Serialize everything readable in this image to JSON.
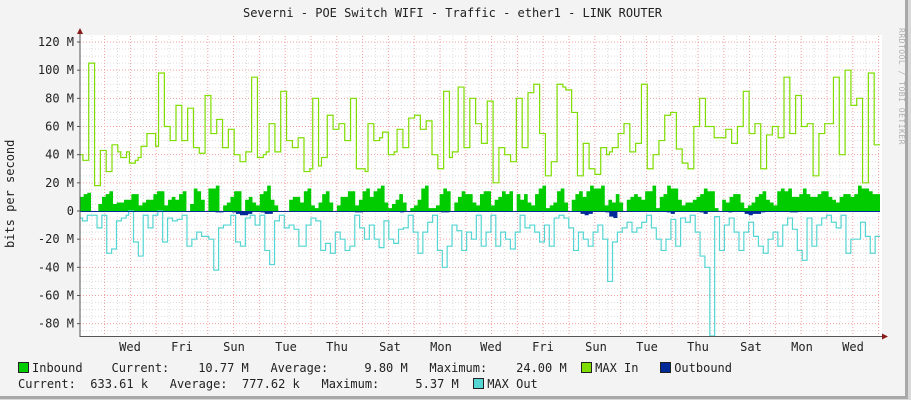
{
  "header": {
    "title": "Severni - POE Switch WIFI - Traffic - ether1 - LINK ROUTER",
    "watermark": "RRDTOOL / TOBI OETIKER"
  },
  "axes": {
    "ylabel": "bits per second",
    "yticks": [
      "120 M",
      "100 M",
      "80 M",
      "60 M",
      "40 M",
      "20 M",
      "0",
      "-20 M",
      "-40 M",
      "-60 M",
      "-80 M"
    ],
    "xticks": [
      "Wed",
      "Fri",
      "Sun",
      "Tue",
      "Thu",
      "Sat",
      "Mon",
      "Wed",
      "Fri",
      "Sun",
      "Tue",
      "Thu",
      "Sat",
      "Mon",
      "Wed"
    ]
  },
  "legend": {
    "inbound": {
      "label": "Inbound",
      "color": "#00cc00",
      "current_label": "Current:",
      "current": "10.77 M",
      "average_label": "Average:",
      "average": "9.80 M",
      "maximum_label": "Maximum:",
      "maximum": "24.00 M"
    },
    "max_in": {
      "label": "MAX In",
      "color": "#7fdd00"
    },
    "outbound": {
      "label": "Outbound",
      "color": "#002a97",
      "current_label": "Current:",
      "current": "633.61 k",
      "average_label": "Average:",
      "average": "777.62 k",
      "maximum_label": "Maximum:",
      "maximum": "5.37 M"
    },
    "max_out": {
      "label": "MAX Out",
      "color": "#55d6d3"
    }
  },
  "chart_data": {
    "type": "area",
    "title": "Severni - POE Switch WIFI - Traffic - ether1 - LINK ROUTER",
    "xlabel": "",
    "ylabel": "bits per second",
    "ylim": [
      -90,
      125
    ],
    "yunit": "M",
    "grid": true,
    "legend_position": "bottom",
    "x_tick_labels": [
      "Wed",
      "Fri",
      "Sun",
      "Tue",
      "Thu",
      "Sat",
      "Mon",
      "Wed",
      "Fri",
      "Sun",
      "Tue",
      "Thu",
      "Sat",
      "Mon",
      "Wed"
    ],
    "series": [
      {
        "name": "Inbound",
        "kind": "area",
        "color": "#00cc00",
        "values": [
          10,
          12,
          13,
          0,
          0,
          5,
          10,
          12,
          14,
          5,
          6,
          6,
          8,
          8,
          12,
          12,
          4,
          6,
          8,
          8,
          12,
          14,
          14,
          4,
          8,
          10,
          8,
          12,
          14,
          0,
          5,
          16,
          14,
          8,
          0,
          16,
          16,
          18,
          0,
          4,
          6,
          10,
          14,
          14,
          0,
          8,
          10,
          6,
          4,
          12,
          14,
          18,
          8,
          4,
          0,
          0,
          0,
          8,
          10,
          10,
          6,
          14,
          16,
          4,
          2,
          6,
          12,
          14,
          6,
          0,
          4,
          10,
          10,
          14,
          14,
          4,
          8,
          14,
          16,
          10,
          14,
          16,
          18,
          6,
          2,
          5,
          8,
          12,
          6,
          0,
          2,
          4,
          8,
          16,
          18,
          2,
          2,
          4,
          12,
          16,
          14,
          0,
          6,
          10,
          14,
          12,
          12,
          6,
          4,
          12,
          14,
          14,
          4,
          8,
          10,
          14,
          12,
          14,
          0,
          12,
          8,
          12,
          6,
          4,
          12,
          16,
          18,
          2,
          4,
          6,
          14,
          16,
          6,
          0,
          8,
          12,
          14,
          10,
          14,
          18,
          16,
          16,
          18,
          4,
          8,
          6,
          12,
          6,
          0,
          8,
          10,
          12,
          10,
          8,
          14,
          14,
          18,
          2,
          10,
          12,
          18,
          16,
          16,
          8,
          4,
          6,
          6,
          8,
          10,
          12,
          16,
          14,
          14,
          2,
          0,
          8,
          6,
          10,
          12,
          12,
          6,
          2,
          4,
          6,
          10,
          12,
          14,
          8,
          6,
          4,
          14,
          16,
          14,
          16,
          10,
          10,
          12,
          16,
          12,
          10,
          10,
          12,
          14,
          14,
          10,
          8,
          6,
          10,
          12,
          12,
          10,
          12,
          18,
          16,
          16,
          14,
          12,
          12
        ],
        "maximum": 24.0
      },
      {
        "name": "MAX In",
        "kind": "line",
        "color": "#7fdd00",
        "values": [
          40,
          36,
          36,
          105,
          105,
          18,
          18,
          43,
          43,
          28,
          28,
          47,
          47,
          42,
          38,
          38,
          42,
          34,
          34,
          36,
          38,
          46,
          46,
          55,
          55,
          55,
          46,
          98,
          98,
          60,
          60,
          50,
          50,
          75,
          75,
          50,
          50,
          73,
          73,
          45,
          45,
          41,
          41,
          82,
          82,
          55,
          55,
          65,
          65,
          45,
          45,
          58,
          58,
          40,
          40,
          35,
          35,
          42,
          42,
          95,
          95,
          38,
          38,
          40,
          42,
          62,
          62,
          42,
          42,
          85,
          85,
          50,
          50,
          45,
          45,
          52,
          52,
          28,
          28,
          30,
          80,
          80,
          32,
          38,
          38,
          68,
          68,
          58,
          58,
          62,
          62,
          50,
          50,
          80,
          80,
          30,
          30,
          30,
          28,
          62,
          62,
          50,
          50,
          52,
          56,
          56,
          40,
          40,
          42,
          58,
          58,
          45,
          45,
          66,
          66,
          68,
          68,
          58,
          58,
          64,
          64,
          40,
          40,
          30,
          30,
          85,
          85,
          38,
          42,
          42,
          88,
          88,
          45,
          45,
          80,
          80,
          62,
          62,
          48,
          48,
          78,
          78,
          20,
          20,
          45,
          45,
          40,
          40,
          35,
          35,
          80,
          80,
          45,
          45,
          84,
          84,
          90,
          90,
          55,
          55,
          25,
          25,
          35,
          35,
          90,
          90,
          88,
          86,
          86,
          70,
          70,
          25,
          25,
          48,
          48,
          30,
          30,
          26,
          26,
          45,
          45,
          40,
          42,
          45,
          45,
          55,
          55,
          62,
          62,
          42,
          42,
          48,
          48,
          90,
          90,
          30,
          30,
          40,
          40,
          50,
          50,
          68,
          68,
          70,
          70,
          44,
          44,
          34,
          34,
          30,
          30,
          60,
          60,
          80,
          80,
          60,
          60,
          60,
          52,
          52,
          52,
          52,
          58,
          58,
          48,
          48,
          60,
          60,
          85,
          85,
          55,
          55,
          62,
          62,
          30,
          30,
          54,
          54,
          60,
          60,
          52,
          52,
          95,
          95,
          55,
          55,
          82,
          82,
          60,
          60,
          62,
          62,
          25,
          25,
          55,
          55,
          62,
          62,
          62,
          95,
          95,
          40,
          40,
          100,
          100,
          75,
          75,
          80,
          80,
          20,
          20,
          98,
          98,
          47,
          47
        ]
      },
      {
        "name": "Outbound",
        "kind": "area",
        "color": "#002a97",
        "values": [
          0,
          0,
          0,
          0,
          0,
          0,
          0,
          0,
          0,
          0,
          0,
          0,
          0,
          0,
          0,
          0,
          0,
          0,
          0,
          0,
          0,
          0,
          0,
          0,
          0,
          0,
          0,
          0,
          0,
          0,
          0,
          0,
          0,
          -1,
          -1,
          0,
          0,
          -1,
          -2,
          -3,
          -3,
          -2,
          0,
          0,
          -1,
          -2,
          -2,
          0,
          0,
          0,
          0,
          0,
          0,
          0,
          0,
          0,
          0,
          0,
          0,
          0,
          0,
          0,
          0,
          0,
          0,
          0,
          0,
          -1,
          -1,
          0,
          0,
          0,
          0,
          0,
          0,
          0,
          0,
          0,
          -1,
          0,
          0,
          0,
          0,
          0,
          0,
          0,
          0,
          0,
          -1,
          -1,
          0,
          0,
          0,
          0,
          0,
          0,
          0,
          0,
          0,
          0,
          0,
          0,
          0,
          0,
          0,
          0,
          0,
          0,
          0,
          0,
          0,
          0,
          0,
          0,
          0,
          0,
          0,
          0,
          0,
          0,
          0,
          0,
          -2,
          -3,
          -2,
          0,
          0,
          0,
          -1,
          -4,
          -5,
          0,
          0,
          0,
          0,
          0,
          0,
          0,
          0,
          0,
          0,
          0,
          0,
          -1,
          -2,
          0,
          0,
          0,
          0,
          0,
          0,
          -1,
          -2,
          0,
          0,
          0,
          0,
          0,
          -1,
          0,
          0,
          0,
          -2,
          -3,
          -2,
          -2,
          -1,
          0,
          0,
          0,
          0,
          0,
          0,
          -1,
          -1,
          0,
          0,
          0,
          0,
          0,
          0,
          0,
          0,
          0,
          0,
          0,
          0,
          0,
          0,
          0,
          0,
          0,
          0,
          0,
          0
        ],
        "maximum": 5.37
      },
      {
        "name": "MAX Out",
        "kind": "line",
        "color": "#55d6d3",
        "values": [
          -5,
          -7,
          -7,
          -3,
          -3,
          -3,
          -3,
          -12,
          -12,
          -3,
          -3,
          -30,
          -30,
          -27,
          -27,
          -7,
          -7,
          -5,
          -5,
          -3,
          0,
          0,
          -22,
          -22,
          -32,
          -32,
          -3,
          -3,
          -12,
          -12,
          -3,
          -3,
          0,
          0,
          -22,
          -22,
          -5,
          -5,
          -7,
          -7,
          -6,
          -6,
          -3,
          -3,
          -25,
          -25,
          -20,
          -20,
          -15,
          -15,
          -18,
          -18,
          -18,
          -20,
          -20,
          -42,
          -42,
          -12,
          -12,
          -10,
          -10,
          -10,
          -3,
          -3,
          -22,
          -22,
          -25,
          -25,
          -5,
          -5,
          -3,
          -3,
          -10,
          -10,
          -3,
          -3,
          -28,
          -28,
          -38,
          -38,
          -7,
          -7,
          -3,
          -3,
          -12,
          -12,
          -10,
          -10,
          -13,
          -13,
          -25,
          -25,
          -25,
          -10,
          -10,
          -5,
          -5,
          -7,
          -7,
          -28,
          -28,
          -23,
          -23,
          -30,
          -30,
          -15,
          -15,
          -20,
          -20,
          -28,
          -28,
          -25,
          -25,
          -3,
          -3,
          -12,
          -12,
          -20,
          -20,
          -10,
          -10,
          -20,
          -20,
          -26,
          -26,
          -7,
          -7,
          -20,
          -20,
          -23,
          -23,
          -13,
          -13,
          -12,
          -12,
          -3,
          -3,
          -15,
          -15,
          -30,
          -30,
          -15,
          -15,
          -8,
          -8,
          -3,
          -3,
          -28,
          -28,
          -40,
          -40,
          -25,
          -25,
          -10,
          -10,
          -14,
          -14,
          -28,
          -28,
          -15,
          -15,
          -20,
          -20,
          -3,
          -3,
          -25,
          -25,
          -15,
          -15,
          -3,
          -3,
          -25,
          -25,
          -15,
          -15,
          -20,
          -20,
          -27,
          -27,
          -15,
          -15,
          -3,
          -3,
          -12,
          -12,
          -10,
          -10,
          -15,
          -15,
          -22,
          -22,
          -10,
          -10,
          -25,
          -25,
          -5,
          -5,
          -3,
          -3,
          -5,
          -5,
          -12,
          -12,
          -28,
          -28,
          -15,
          -15,
          -20,
          -20,
          -25,
          -25,
          -15,
          -15,
          -10,
          -10,
          -20,
          -20,
          -50,
          -50,
          -22,
          -22,
          -15,
          -15,
          -12,
          -12,
          -8,
          -8,
          -15,
          -15,
          -12,
          -12,
          -8,
          -8,
          -3,
          -3,
          -12,
          -12,
          -20,
          -20,
          -28,
          -28,
          -20,
          -20,
          -6,
          -6,
          -25,
          -25,
          -5,
          -5,
          -8,
          -8,
          -3,
          -3,
          -15,
          -15,
          -32,
          -32,
          -40,
          -40,
          -92,
          -92,
          -4,
          -4,
          -28,
          -28,
          -10,
          -10,
          -5,
          -5,
          -15,
          -15,
          -28,
          -28,
          -15,
          -15,
          -8,
          -8,
          -18,
          -18,
          -25,
          -25,
          -30,
          -30,
          -20,
          -20,
          -15,
          -15,
          -25,
          -25,
          -10,
          -10,
          -5,
          -5,
          -13,
          -13,
          -28,
          -28,
          -35,
          -35,
          -5,
          -5,
          -25,
          -25,
          -10,
          -10,
          -5,
          -5,
          -3,
          -3,
          -8,
          -8,
          -12,
          -12,
          -3,
          -3,
          -30,
          -30,
          -20,
          -20,
          -20,
          -20,
          -8,
          -8,
          -18,
          -18,
          -30,
          -30,
          -18,
          -18
        ]
      }
    ]
  }
}
